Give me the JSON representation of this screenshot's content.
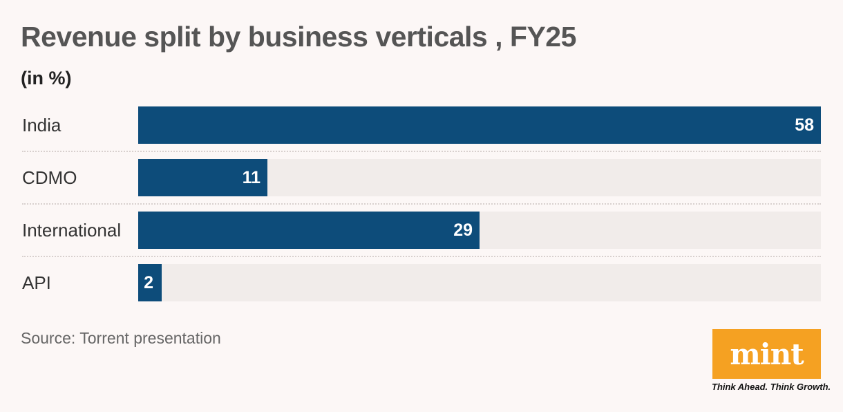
{
  "chart_data": {
    "type": "bar",
    "orientation": "horizontal",
    "title": "Revenue split by business verticals , FY25",
    "subtitle": "(in %)",
    "categories": [
      "India",
      "CDMO",
      "International",
      "API"
    ],
    "values": [
      58,
      11,
      29,
      2
    ],
    "value_labels": [
      "58",
      "11",
      "29",
      "2"
    ],
    "xlim": [
      0,
      58
    ],
    "grid": false,
    "xlabel": "",
    "ylabel": ""
  },
  "source": "Source: Torrent presentation",
  "logo": {
    "text": "mint",
    "tagline": "Think Ahead. Think Growth."
  },
  "colors": {
    "bar": "#0d4c7a",
    "track": "#f1ecea",
    "background": "#fcf7f6",
    "logo": "#f5a122"
  }
}
